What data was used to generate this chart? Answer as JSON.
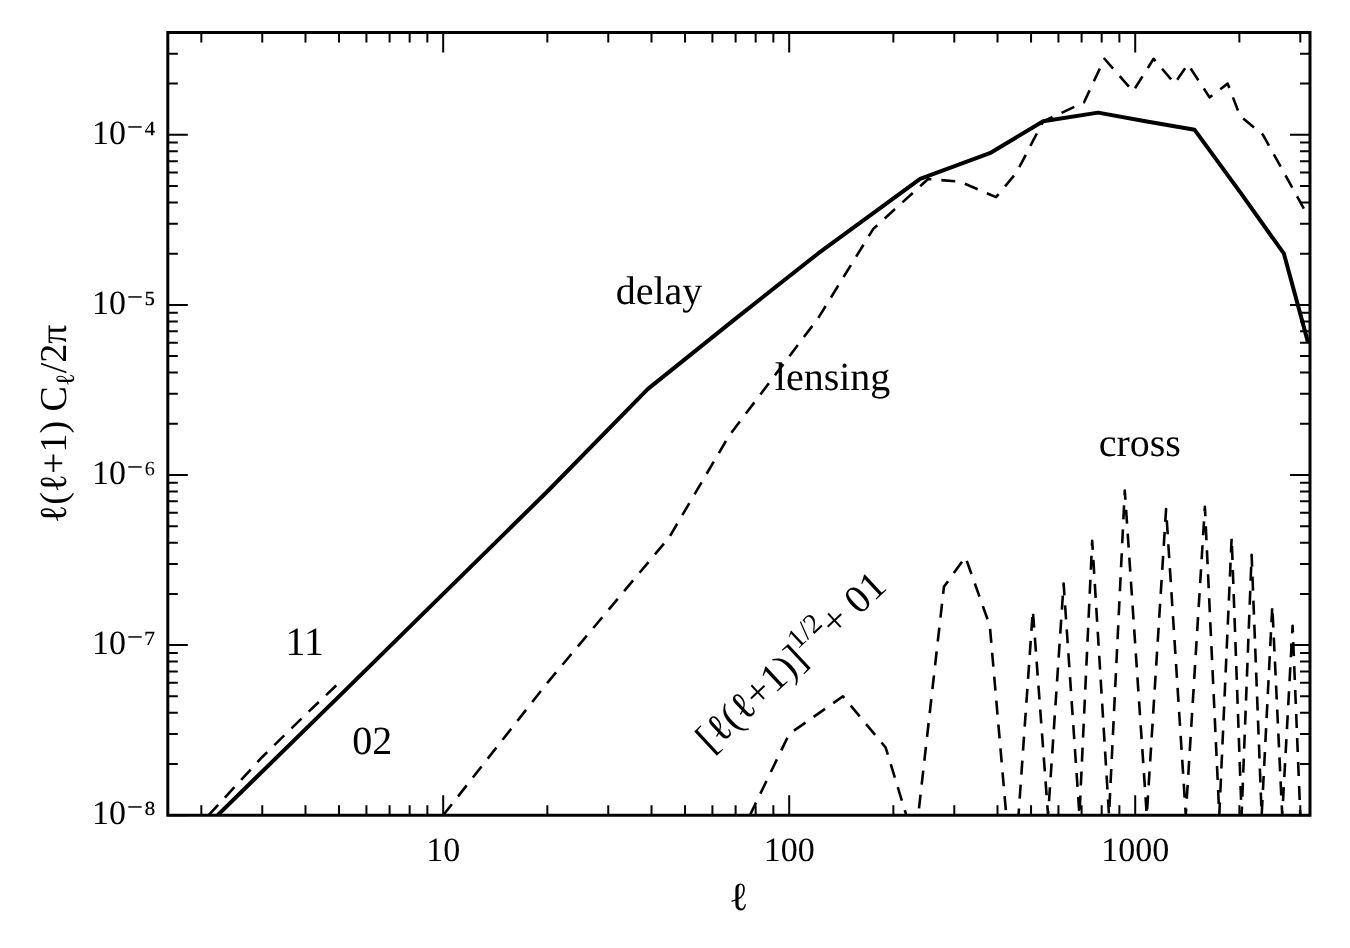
{
  "chart_data": {
    "type": "line",
    "xlabel": "ℓ",
    "ylabel": "ℓ(ℓ+1) C$_{ℓ}$/2π",
    "log": "xy",
    "legend": false,
    "grid": false,
    "marker": "none",
    "xlim": [
      1.6,
      3200
    ],
    "ylim": [
      1e-08,
      0.0004
    ],
    "xticks": [
      {
        "value": 2,
        "label": null
      },
      {
        "value": 3,
        "label": null
      },
      {
        "value": 4,
        "label": null
      },
      {
        "value": 5,
        "label": null
      },
      {
        "value": 6,
        "label": null
      },
      {
        "value": 7,
        "label": null
      },
      {
        "value": 8,
        "label": null
      },
      {
        "value": 9,
        "label": null
      },
      10,
      {
        "value": 20,
        "label": null
      },
      {
        "value": 30,
        "label": null
      },
      {
        "value": 40,
        "label": null
      },
      {
        "value": 50,
        "label": null
      },
      {
        "value": 60,
        "label": null
      },
      {
        "value": 70,
        "label": null
      },
      {
        "value": 80,
        "label": null
      },
      {
        "value": 90,
        "label": null
      },
      100,
      {
        "value": 200,
        "label": null
      },
      {
        "value": 300,
        "label": null
      },
      {
        "value": 400,
        "label": null
      },
      {
        "value": 500,
        "label": null
      },
      {
        "value": 600,
        "label": null
      },
      {
        "value": 700,
        "label": null
      },
      {
        "value": 800,
        "label": null
      },
      {
        "value": 900,
        "label": null
      },
      1000,
      {
        "value": 2000,
        "label": null
      },
      {
        "value": 3000,
        "label": null
      }
    ],
    "yticks": [
      {
        "value": 1e-08,
        "label": "10⁻⁸"
      },
      {
        "value": 2e-08,
        "label": null
      },
      {
        "value": 3e-08,
        "label": null
      },
      {
        "value": 4e-08,
        "label": null
      },
      {
        "value": 5e-08,
        "label": null
      },
      {
        "value": 6e-08,
        "label": null
      },
      {
        "value": 7e-08,
        "label": null
      },
      {
        "value": 8e-08,
        "label": null
      },
      {
        "value": 9e-08,
        "label": null
      },
      {
        "value": 1e-07,
        "label": "10⁻⁷"
      },
      {
        "value": 2e-07,
        "label": null
      },
      {
        "value": 3e-07,
        "label": null
      },
      {
        "value": 4e-07,
        "label": null
      },
      {
        "value": 5e-07,
        "label": null
      },
      {
        "value": 6e-07,
        "label": null
      },
      {
        "value": 7e-07,
        "label": null
      },
      {
        "value": 8e-07,
        "label": null
      },
      {
        "value": 9e-07,
        "label": null
      },
      {
        "value": 1e-06,
        "label": "10⁻⁶"
      },
      {
        "value": 2e-06,
        "label": null
      },
      {
        "value": 3e-06,
        "label": null
      },
      {
        "value": 4e-06,
        "label": null
      },
      {
        "value": 5e-06,
        "label": null
      },
      {
        "value": 6e-06,
        "label": null
      },
      {
        "value": 7e-06,
        "label": null
      },
      {
        "value": 8e-06,
        "label": null
      },
      {
        "value": 9e-06,
        "label": null
      },
      {
        "value": 1e-05,
        "label": "10⁻⁵"
      },
      {
        "value": 2e-05,
        "label": null
      },
      {
        "value": 3e-05,
        "label": null
      },
      {
        "value": 4e-05,
        "label": null
      },
      {
        "value": 5e-05,
        "label": null
      },
      {
        "value": 6e-05,
        "label": null
      },
      {
        "value": 7e-05,
        "label": null
      },
      {
        "value": 8e-05,
        "label": null
      },
      {
        "value": 9e-05,
        "label": null
      },
      {
        "value": 0.0001,
        "label": "10⁻⁴"
      },
      {
        "value": 0.0002,
        "label": null
      },
      {
        "value": 0.0003,
        "label": null
      }
    ],
    "series": [
      {
        "color": "#000000",
        "line_style": "solid",
        "x": [
          2.23,
          5,
          10,
          20,
          39,
          70,
          121,
          239,
          380,
          542,
          781,
          1070,
          1485,
          2010,
          2690,
          3160
        ],
        "values": [
          1e-08,
          5e-08,
          2e-07,
          8e-07,
          3.2e-06,
          8.3e-06,
          2e-05,
          5.5e-05,
          7.8e-05,
          0.00012,
          0.000135,
          0.00012,
          0.000107,
          4.6e-05,
          2e-05,
          6e-06
        ]
      },
      {
        "color": "#000000",
        "line_style": "dashed",
        "x": [
          2.1,
          3,
          4,
          5
        ],
        "values": [
          1e-08,
          2.2e-08,
          3.9e-08,
          6e-08
        ]
      },
      {
        "color": "#000000",
        "line_style": "dashed",
        "x": [
          10,
          20,
          45,
          67,
          121,
          175,
          252,
          312,
          396,
          454,
          542,
          711,
          815,
          986,
          1130,
          1300,
          1420,
          1640,
          1850,
          2010,
          2340,
          2690,
          3090
        ],
        "values": [
          1e-08,
          6e-08,
          4.3e-07,
          1.7e-06,
          8.3e-06,
          2.8e-05,
          5.5e-05,
          5.3e-05,
          4.3e-05,
          6e-05,
          0.00012,
          0.000155,
          0.00028,
          0.00018,
          0.00028,
          0.0002,
          0.00026,
          0.000166,
          0.0002,
          0.000129,
          0.0001,
          6e-05,
          3.6e-05
        ]
      },
      {
        "color": "#000000",
        "line_style": "dashed",
        "x": [
          77,
          100,
          143,
          190,
          218,
          236,
          280,
          323,
          380,
          424,
          460,
          506,
          560,
          621,
          690,
          751,
          840,
          933,
          1080,
          1228,
          1400,
          1590,
          1750,
          1900,
          2030,
          2170,
          2320,
          2490,
          2660,
          2850,
          3000
        ],
        "values": [
          1e-08,
          3e-08,
          5e-08,
          2.5e-08,
          1e-08,
          1e-08,
          2.2e-07,
          3.3e-07,
          1.3e-07,
          1e-08,
          1e-08,
          1.6e-07,
          1e-08,
          2.3e-07,
          1e-08,
          4.1e-07,
          1e-08,
          8.1e-07,
          1e-08,
          6.3e-07,
          1e-08,
          6.5e-07,
          1e-08,
          4.3e-07,
          1e-08,
          3.4e-07,
          1e-08,
          1.7e-07,
          1e-08,
          1.3e-07,
          1e-08
        ]
      }
    ],
    "annotations": [
      "delay",
      "lensing",
      "cross",
      "11",
      "02",
      "[ℓ(ℓ+1)]$^{1/2}$+ 01"
    ]
  }
}
